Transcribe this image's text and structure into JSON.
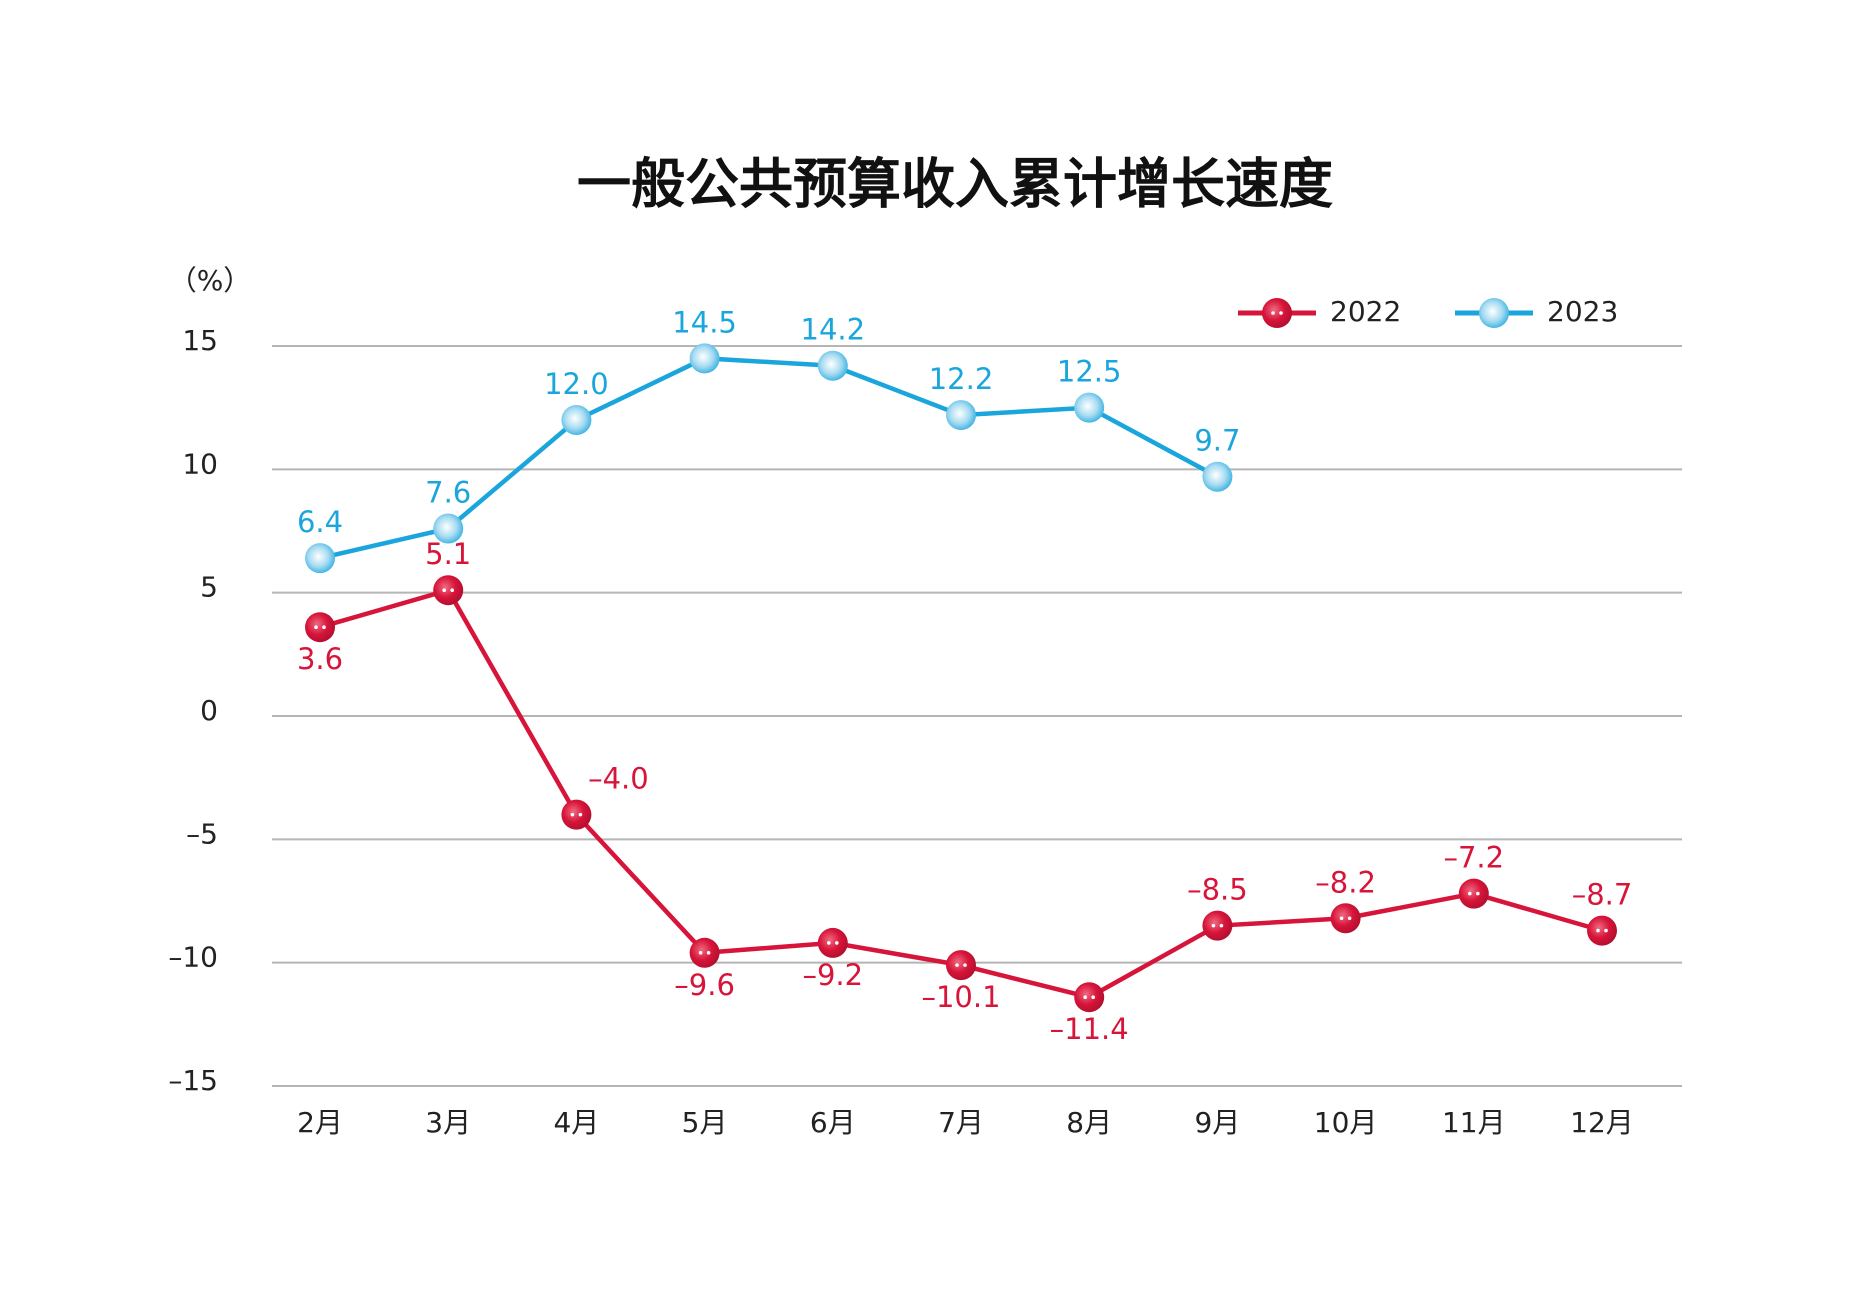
{
  "chart_data": {
    "type": "line",
    "title": "一般公共预算收入累计增长速度",
    "y_unit": "（%）",
    "categories": [
      "2月",
      "3月",
      "4月",
      "5月",
      "6月",
      "7月",
      "8月",
      "9月",
      "10月",
      "11月",
      "12月"
    ],
    "series": [
      {
        "name": "2022",
        "color": "#d7143a",
        "values": [
          3.6,
          5.1,
          -4.0,
          -9.6,
          -9.2,
          -10.1,
          -11.4,
          -8.5,
          -8.2,
          -7.2,
          -8.7
        ],
        "value_labels": [
          "3.6",
          "5.1",
          "–4.0",
          "–9.6",
          "–9.2",
          "–10.1",
          "–11.4",
          "–8.5",
          "–8.2",
          "–7.2",
          "–8.7"
        ]
      },
      {
        "name": "2023",
        "color": "#1aa6dc",
        "values": [
          6.4,
          7.6,
          12.0,
          14.5,
          14.2,
          12.2,
          12.5,
          9.7,
          null,
          null,
          null
        ],
        "value_labels": [
          "6.4",
          "7.6",
          "12.0",
          "14.5",
          "14.2",
          "12.2",
          "12.5",
          "9.7",
          null,
          null,
          null
        ]
      }
    ],
    "ylim": [
      -15,
      15
    ],
    "yticks": [
      {
        "value": -15,
        "label": "–15"
      },
      {
        "value": -10,
        "label": "–10"
      },
      {
        "value": -5,
        "label": "–5"
      },
      0,
      5,
      10,
      15
    ],
    "grid": true,
    "legend": "top-right"
  }
}
